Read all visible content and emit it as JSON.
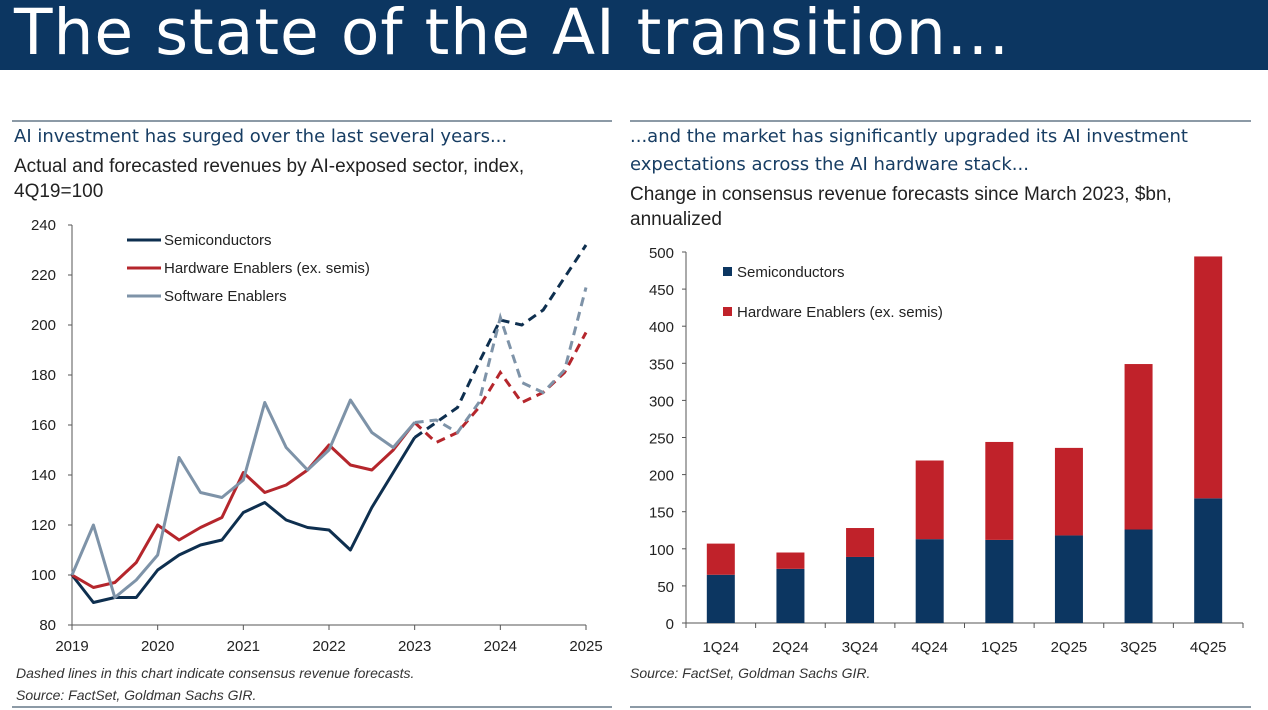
{
  "title": "The state of the AI transition...",
  "left": {
    "headline": "AI investment has surged over the last several years...",
    "subtitle_line1": "Actual and forecasted revenues by AI-exposed sector, index,",
    "subtitle_line2": "4Q19=100",
    "note": "Dashed lines in this chart indicate consensus revenue forecasts.",
    "source": "Source: FactSet, Goldman Sachs GIR."
  },
  "right": {
    "headline_line1": "...and the market has significantly upgraded its AI investment",
    "headline_line2": "expectations across the AI hardware stack...",
    "subtitle_line1": "Change in consensus revenue forecasts since March 2023, $bn,",
    "subtitle_line2": "annualized",
    "source": "Source: FactSet, Goldman Sachs GIR."
  },
  "chart_data": [
    {
      "type": "line",
      "title": "Actual and forecasted revenues by AI-exposed sector, index, 4Q19=100",
      "xlabel": "",
      "ylabel": "",
      "ylim": [
        80,
        240
      ],
      "yticks": [
        "80",
        "100",
        "120",
        "140",
        "160",
        "180",
        "200",
        "220",
        "240"
      ],
      "xticks": [
        "2019",
        "2020",
        "2021",
        "2022",
        "2023",
        "2024",
        "2025"
      ],
      "x_start": 2019,
      "x_step": 0.25,
      "forecast_start_index": 16,
      "legend": "top-left",
      "series": [
        {
          "name": "Semiconductors",
          "color": "#0e2f4f",
          "values": [
            100,
            89,
            91,
            91,
            102,
            108,
            112,
            114,
            125,
            129,
            122,
            119,
            118,
            110,
            127,
            141,
            155,
            161,
            167,
            185,
            202,
            200,
            206,
            219,
            232
          ]
        },
        {
          "name": "Hardware Enablers (ex. semis)",
          "color": "#b5262c",
          "values": [
            100,
            95,
            97,
            105,
            120,
            114,
            119,
            123,
            141,
            133,
            136,
            142,
            152,
            144,
            142,
            150,
            161,
            153,
            157,
            167,
            181,
            169,
            173,
            181,
            197
          ]
        },
        {
          "name": "Software Enablers",
          "color": "#7e93a8",
          "values": [
            100,
            120,
            91,
            98,
            108,
            147,
            133,
            131,
            138,
            169,
            151,
            142,
            150,
            170,
            157,
            151,
            161,
            162,
            157,
            169,
            203,
            177,
            173,
            182,
            215
          ]
        }
      ]
    },
    {
      "type": "bar",
      "stacked": true,
      "title": "Change in consensus revenue forecasts since March 2023, $bn, annualized",
      "xlabel": "",
      "ylabel": "",
      "ylim": [
        0,
        500
      ],
      "yticks": [
        "0",
        "50",
        "100",
        "150",
        "200",
        "250",
        "300",
        "350",
        "400",
        "450",
        "500"
      ],
      "categories": [
        "1Q24",
        "2Q24",
        "3Q24",
        "4Q24",
        "1Q25",
        "2Q25",
        "3Q25",
        "4Q25"
      ],
      "legend": "top-left",
      "series": [
        {
          "name": "Semiconductors",
          "color": "#0c3661",
          "values": [
            65,
            73,
            89,
            113,
            112,
            118,
            126,
            168
          ]
        },
        {
          "name": "Hardware Enablers (ex. semis)",
          "color": "#c0222a",
          "values": [
            42,
            22,
            39,
            106,
            132,
            118,
            223,
            326
          ]
        }
      ]
    }
  ]
}
